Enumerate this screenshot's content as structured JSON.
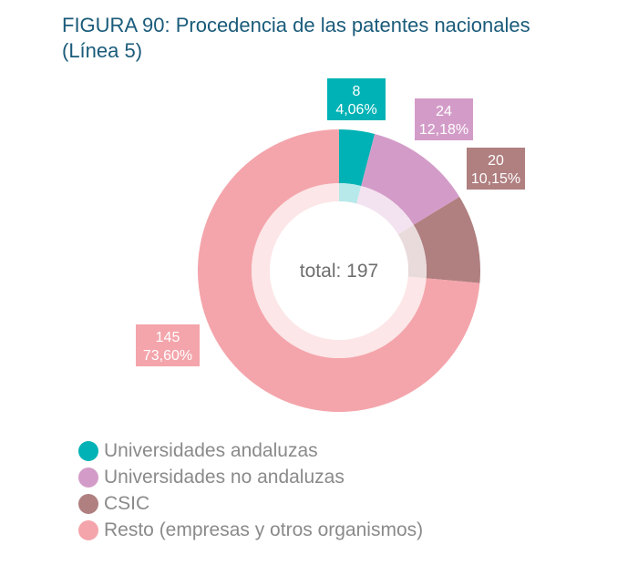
{
  "figure": {
    "title_line1": "FIGURA 90: Procedencia de las patentes nacionales",
    "title_line2": "(Línea 5)"
  },
  "center_label": "total: 197",
  "colors": {
    "title": "#1a5b7a",
    "universidades_andaluzas": "#00b2b5",
    "universidades_no_andaluzas": "#d39cc8",
    "csic": "#b07f80",
    "resto": "#f4a5ab"
  },
  "chart_data": {
    "type": "pie",
    "style": "donut",
    "title": "FIGURA 90: Procedencia de las patentes nacionales (Línea 5)",
    "total": 197,
    "slices": [
      {
        "name": "Universidades andaluzas",
        "value": 8,
        "percent_label": "4,06%",
        "color": "#00b2b5"
      },
      {
        "name": "Universidades no andaluzas",
        "value": 24,
        "percent_label": "12,18%",
        "color": "#d39cc8"
      },
      {
        "name": "CSIC",
        "value": 20,
        "percent_label": "10,15%",
        "color": "#b07f80"
      },
      {
        "name": "Resto (empresas y otros organismos)",
        "value": 145,
        "percent_label": "73,60%",
        "color": "#f4a5ab"
      }
    ],
    "legend_placement": "bottom-left"
  },
  "legend": {
    "items": [
      {
        "label": "Universidades andaluzas",
        "color": "#00b2b5"
      },
      {
        "label": "Universidades no andaluzas",
        "color": "#d39cc8"
      },
      {
        "label": "CSIC",
        "color": "#b07f80"
      },
      {
        "label": "Resto (empresas y otros organismos)",
        "color": "#f4a5ab"
      }
    ]
  }
}
